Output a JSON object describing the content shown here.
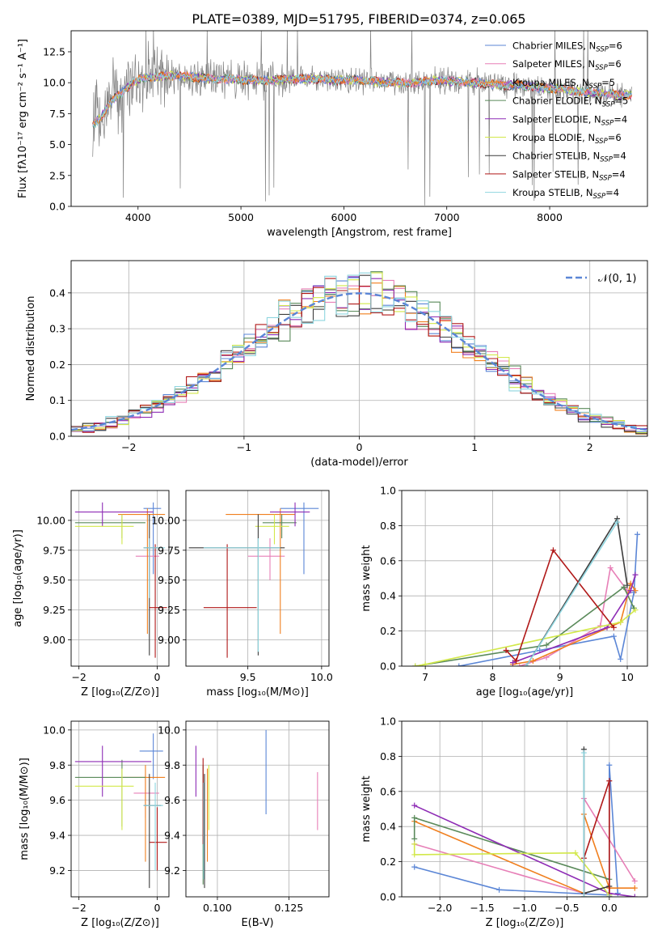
{
  "title": "PLATE=0389, MJD=51795, FIBERID=0374, z=0.065",
  "colors": {
    "Chabrier MILES": "#5b86d6",
    "Salpeter MILES": "#e77fb7",
    "Kroupa MILES": "#f07f1e",
    "Chabrier ELODIE": "#5a8a5a",
    "Salpeter ELODIE": "#8e2cb5",
    "Kroupa ELODIE": "#d2e84a",
    "Chabrier STELIB": "#3c3c3c",
    "Salpeter STELIB": "#b01818",
    "Kroupa STELIB": "#8ed5df",
    "data": "#808080",
    "normal": "#5b86d6"
  },
  "chart_data": [
    {
      "id": "spectrum",
      "type": "line",
      "title": "PLATE=0389, MJD=51795, FIBERID=0374, z=0.065",
      "xlabel": "wavelength [Angstrom, rest frame]",
      "ylabel": "Flux [fλ10⁻¹⁷ erg cm⁻² s⁻¹ A⁻¹]",
      "xlim": [
        3350,
        8950
      ],
      "ylim": [
        0,
        14.2
      ],
      "xticks": [
        "4000",
        "5000",
        "6000",
        "7000",
        "8000"
      ],
      "yticks": [
        "0.0",
        "2.5",
        "5.0",
        "7.5",
        "10.0",
        "12.5"
      ],
      "legend_position": "upper-right",
      "legend": [
        {
          "series": "Chabrier MILES",
          "label": "Chabrier MILES, N",
          "sub": "SSP",
          "value": "=6"
        },
        {
          "series": "Salpeter MILES",
          "label": "Salpeter MILES, N",
          "sub": "SSP",
          "value": "=6"
        },
        {
          "series": "Kroupa MILES",
          "label": "Kroupa MILES, N",
          "sub": "SSP",
          "value": "=5"
        },
        {
          "series": "Chabrier ELODIE",
          "label": "Chabrier ELODIE, N",
          "sub": "SSP",
          "value": "=5"
        },
        {
          "series": "Salpeter ELODIE",
          "label": "Salpeter ELODIE, N",
          "sub": "SSP",
          "value": "=4"
        },
        {
          "series": "Kroupa ELODIE",
          "label": "Kroupa ELODIE, N",
          "sub": "SSP",
          "value": "=6"
        },
        {
          "series": "Chabrier STELIB",
          "label": "Chabrier STELIB, N",
          "sub": "SSP",
          "value": "=4"
        },
        {
          "series": "Salpeter STELIB",
          "label": "Salpeter STELIB, N",
          "sub": "SSP",
          "value": "=4"
        },
        {
          "series": "Kroupa STELIB",
          "label": "Kroupa STELIB, N",
          "sub": "SSP",
          "value": "=4"
        }
      ],
      "continuum": {
        "x": [
          3560,
          3650,
          3750,
          3850,
          3950,
          4050,
          4150,
          4300,
          4500,
          4700,
          4900,
          5100,
          5300,
          5500,
          5700,
          5900,
          6100,
          6300,
          6500,
          6700,
          6900,
          7100,
          7300,
          7500,
          7700,
          7900,
          8100,
          8300,
          8500,
          8700,
          8800
        ],
        "y": [
          6.6,
          7.3,
          8.6,
          9.3,
          10.0,
          10.4,
          10.4,
          10.6,
          10.5,
          10.3,
          10.3,
          10.2,
          10.2,
          10.3,
          10.3,
          10.2,
          10.2,
          10.1,
          10.0,
          10.0,
          10.2,
          10.1,
          10.0,
          9.8,
          9.8,
          9.6,
          9.5,
          9.3,
          9.1,
          9.0,
          9.0
        ]
      }
    },
    {
      "id": "residuals",
      "type": "histogram",
      "xlabel": "(data-model)/error",
      "ylabel": "Normed distribution",
      "xlim": [
        -2.5,
        2.5
      ],
      "ylim": [
        0,
        0.49
      ],
      "xticks": [
        "−2",
        "−1",
        "0",
        "1",
        "2"
      ],
      "yticks": [
        "0.0",
        "0.1",
        "0.2",
        "0.3",
        "0.4"
      ],
      "legend": "𝒩(0, 1)",
      "legend_position": "top-right",
      "normal_curve": {
        "mean": 0,
        "sigma": 1
      }
    },
    {
      "id": "age-vs-Z",
      "type": "errorbar",
      "xlabel": "Z [log₁₀(Z/Z⊙)]",
      "ylabel": "age  [log₁₀(age/yr)]",
      "xlim": [
        -2.2,
        0.3
      ],
      "ylim": [
        8.78,
        10.25
      ],
      "xticks": [
        "−2",
        "0"
      ],
      "yticks": [
        "9.00",
        "9.25",
        "9.50",
        "9.75",
        "10.00"
      ],
      "points": [
        {
          "series": "Chabrier MILES",
          "x": -0.1,
          "xlo": -0.35,
          "xhi": 0.1,
          "y": 10.1,
          "ylo": 9.55,
          "yhi": 10.15
        },
        {
          "series": "Salpeter MILES",
          "x": -0.2,
          "xlo": -0.55,
          "xhi": 0.05,
          "y": 9.7,
          "ylo": 9.5,
          "yhi": 9.85
        },
        {
          "series": "Kroupa MILES",
          "x": -0.25,
          "xlo": -1.0,
          "xhi": 0.2,
          "y": 10.05,
          "ylo": 9.05,
          "yhi": 10.1
        },
        {
          "series": "Chabrier ELODIE",
          "x": -0.9,
          "xlo": -2.1,
          "xhi": -0.3,
          "y": 9.98,
          "ylo": 9.85,
          "yhi": 10.05
        },
        {
          "series": "Salpeter ELODIE",
          "x": -1.4,
          "xlo": -2.1,
          "xhi": -0.1,
          "y": 10.07,
          "ylo": 9.95,
          "yhi": 10.15
        },
        {
          "series": "Kroupa ELODIE",
          "x": -0.9,
          "xlo": -2.1,
          "xhi": -0.6,
          "y": 9.95,
          "ylo": 9.8,
          "yhi": 10.05
        },
        {
          "series": "Chabrier STELIB",
          "x": -0.2,
          "xlo": -0.35,
          "xhi": 0.1,
          "y": 9.77,
          "ylo": 8.87,
          "yhi": 10.05
        },
        {
          "series": "Salpeter STELIB",
          "x": -0.05,
          "xlo": -0.2,
          "xhi": 0.25,
          "y": 9.27,
          "ylo": 8.85,
          "yhi": 9.8
        },
        {
          "series": "Kroupa STELIB",
          "x": -0.2,
          "xlo": -0.35,
          "xhi": 0.2,
          "y": 9.77,
          "ylo": 9.35,
          "yhi": 9.85
        }
      ]
    },
    {
      "id": "age-vs-mass",
      "type": "errorbar",
      "xlabel": "mass [log₁₀(M/M⊙)]",
      "ylabel": "",
      "xlim": [
        9.08,
        10.05
      ],
      "ylim": [
        8.78,
        10.25
      ],
      "xticks": [
        "9.5",
        "10.0"
      ],
      "yticks": [
        "9.00",
        "9.25",
        "9.50",
        "9.75",
        "10.00"
      ],
      "points": [
        {
          "series": "Chabrier MILES",
          "x": 9.88,
          "xlo": 9.72,
          "xhi": 9.98,
          "y": 10.1,
          "ylo": 9.55,
          "yhi": 10.15
        },
        {
          "series": "Salpeter MILES",
          "x": 9.65,
          "xlo": 9.5,
          "xhi": 9.75,
          "y": 9.7,
          "ylo": 9.5,
          "yhi": 9.85
        },
        {
          "series": "Kroupa MILES",
          "x": 9.72,
          "xlo": 9.35,
          "xhi": 9.82,
          "y": 10.05,
          "ylo": 9.05,
          "yhi": 10.1
        },
        {
          "series": "Chabrier ELODIE",
          "x": 9.73,
          "xlo": 9.6,
          "xhi": 9.83,
          "y": 9.98,
          "ylo": 9.85,
          "yhi": 10.05
        },
        {
          "series": "Salpeter ELODIE",
          "x": 9.82,
          "xlo": 9.65,
          "xhi": 9.92,
          "y": 10.07,
          "ylo": 9.95,
          "yhi": 10.15
        },
        {
          "series": "Kroupa ELODIE",
          "x": 9.68,
          "xlo": 9.55,
          "xhi": 9.78,
          "y": 9.95,
          "ylo": 9.8,
          "yhi": 10.05
        },
        {
          "series": "Chabrier STELIB",
          "x": 9.57,
          "xlo": 9.1,
          "xhi": 9.75,
          "y": 9.77,
          "ylo": 8.87,
          "yhi": 10.05
        },
        {
          "series": "Salpeter STELIB",
          "x": 9.36,
          "xlo": 9.2,
          "xhi": 9.56,
          "y": 9.27,
          "ylo": 8.85,
          "yhi": 9.8
        },
        {
          "series": "Kroupa STELIB",
          "x": 9.57,
          "xlo": 9.2,
          "xhi": 9.72,
          "y": 9.77,
          "ylo": 8.9,
          "yhi": 9.85
        }
      ]
    },
    {
      "id": "weight-vs-age",
      "type": "line",
      "xlabel": "age  [log₁₀(age/yr)]",
      "ylabel": "mass weight",
      "xlim": [
        6.65,
        10.3
      ],
      "ylim": [
        0,
        1.0
      ],
      "xticks": [
        "7",
        "8",
        "9",
        "10"
      ],
      "yticks": [
        "0.0",
        "0.2",
        "0.4",
        "0.6",
        "0.8",
        "1.0"
      ],
      "series": [
        {
          "name": "Chabrier MILES",
          "x": [
            7.5,
            8.7,
            9.8,
            9.9,
            10.1,
            10.15
          ],
          "y": [
            0.0,
            0.09,
            0.17,
            0.04,
            0.42,
            0.75
          ]
        },
        {
          "name": "Salpeter MILES",
          "x": [
            8.4,
            8.8,
            9.6,
            9.75,
            10.0
          ],
          "y": [
            0.0,
            0.05,
            0.23,
            0.56,
            0.43
          ]
        },
        {
          "name": "Kroupa MILES",
          "x": [
            8.3,
            8.6,
            9.9,
            10.05,
            10.12
          ],
          "y": [
            0.01,
            0.03,
            0.25,
            0.47,
            0.43
          ]
        },
        {
          "name": "Chabrier ELODIE",
          "x": [
            6.85,
            8.8,
            9.95,
            10.1
          ],
          "y": [
            0.0,
            0.12,
            0.45,
            0.33
          ]
        },
        {
          "name": "Salpeter ELODIE",
          "x": [
            8.3,
            9.7,
            10.05,
            10.12
          ],
          "y": [
            0.02,
            0.22,
            0.43,
            0.52
          ]
        },
        {
          "name": "Kroupa ELODIE",
          "x": [
            6.85,
            7.0,
            9.9,
            10.12
          ],
          "y": [
            0.0,
            0.01,
            0.25,
            0.32
          ]
        },
        {
          "name": "Chabrier STELIB",
          "x": [
            8.5,
            9.85,
            10.0
          ],
          "y": [
            0.0,
            0.84,
            0.46
          ]
        },
        {
          "name": "Salpeter STELIB",
          "x": [
            8.2,
            8.35,
            8.9,
            9.8
          ],
          "y": [
            0.09,
            0.03,
            0.66,
            0.22
          ]
        },
        {
          "name": "Kroupa STELIB",
          "x": [
            8.5,
            9.85
          ],
          "y": [
            0.0,
            0.82
          ]
        }
      ]
    },
    {
      "id": "mass-vs-Z",
      "type": "errorbar",
      "xlabel": "Z [log₁₀(Z/Z⊙)]",
      "ylabel": "mass [log₁₀(M/M⊙)]",
      "xlim": [
        -2.2,
        0.3
      ],
      "ylim": [
        9.05,
        10.05
      ],
      "xticks": [
        "−2",
        "0"
      ],
      "yticks": [
        "9.2",
        "9.4",
        "9.6",
        "9.8",
        "10.0"
      ],
      "points": [
        {
          "series": "Chabrier MILES",
          "x": -0.1,
          "xlo": -0.45,
          "xhi": 0.15,
          "y": 9.88,
          "ylo": 9.72,
          "yhi": 9.98
        },
        {
          "series": "Salpeter MILES",
          "x": -0.3,
          "xlo": -0.6,
          "xhi": 0.05,
          "y": 9.64,
          "ylo": 9.5,
          "yhi": 9.75
        },
        {
          "series": "Kroupa MILES",
          "x": -0.3,
          "xlo": -0.9,
          "xhi": 0.2,
          "y": 9.73,
          "ylo": 9.25,
          "yhi": 9.8
        },
        {
          "series": "Chabrier ELODIE",
          "x": -0.9,
          "xlo": -2.1,
          "xhi": -0.3,
          "y": 9.73,
          "ylo": 9.45,
          "yhi": 9.83
        },
        {
          "series": "Salpeter ELODIE",
          "x": -1.4,
          "xlo": -2.1,
          "xhi": -0.15,
          "y": 9.82,
          "ylo": 9.62,
          "yhi": 9.91
        },
        {
          "series": "Kroupa ELODIE",
          "x": -0.9,
          "xlo": -2.1,
          "xhi": -0.6,
          "y": 9.68,
          "ylo": 9.43,
          "yhi": 9.78
        },
        {
          "series": "Chabrier STELIB",
          "x": -0.2,
          "xlo": -0.35,
          "xhi": 0.1,
          "y": 9.57,
          "ylo": 9.1,
          "yhi": 9.75
        },
        {
          "series": "Salpeter STELIB",
          "x": 0.0,
          "xlo": -0.2,
          "xhi": 0.25,
          "y": 9.36,
          "ylo": 9.2,
          "yhi": 9.56
        },
        {
          "series": "Kroupa STELIB",
          "x": -0.05,
          "xlo": -0.35,
          "xhi": 0.15,
          "y": 9.57,
          "ylo": 9.2,
          "yhi": 9.7
        }
      ]
    },
    {
      "id": "mass-vs-ebv",
      "type": "errorbar",
      "xlabel": "E(B-V)",
      "ylabel": "",
      "xlim": [
        0.089,
        0.139
      ],
      "ylim": [
        9.05,
        10.05
      ],
      "xticks": [
        "0.100",
        "0.125"
      ],
      "yticks": [
        "9.2",
        "9.4",
        "9.6",
        "9.8",
        "10.0"
      ],
      "points": [
        {
          "series": "Chabrier MILES",
          "x": 0.117,
          "ylo": 9.52,
          "yhi": 10.0
        },
        {
          "series": "Salpeter MILES",
          "x": 0.135,
          "ylo": 9.43,
          "yhi": 9.76
        },
        {
          "series": "Kroupa MILES",
          "x": 0.0965,
          "ylo": 9.25,
          "yhi": 9.78
        },
        {
          "series": "Chabrier ELODIE",
          "x": 0.095,
          "ylo": 9.12,
          "yhi": 9.8
        },
        {
          "series": "Salpeter ELODIE",
          "x": 0.0925,
          "ylo": 9.62,
          "yhi": 9.91
        },
        {
          "series": "Kroupa ELODIE",
          "x": 0.097,
          "ylo": 9.43,
          "yhi": 9.8
        },
        {
          "series": "Chabrier STELIB",
          "x": 0.0955,
          "ylo": 9.1,
          "yhi": 9.75
        },
        {
          "series": "Salpeter STELIB",
          "x": 0.095,
          "ylo": 9.35,
          "yhi": 9.84
        },
        {
          "series": "Kroupa STELIB",
          "x": 0.0952,
          "ylo": 9.15,
          "yhi": 9.7
        }
      ]
    },
    {
      "id": "weight-vs-Z",
      "type": "line",
      "xlabel": "Z [log₁₀(Z/Z⊙)]",
      "ylabel": "mass weight",
      "xlim": [
        -2.45,
        0.45
      ],
      "ylim": [
        0,
        1.0
      ],
      "xticks": [
        "−2.0",
        "−1.5",
        "−1.0",
        "−0.5",
        "0.0"
      ],
      "yticks": [
        "0.0",
        "0.2",
        "0.4",
        "0.6",
        "0.8",
        "1.0"
      ],
      "series": [
        {
          "name": "Chabrier MILES",
          "x": [
            -2.3,
            -1.3,
            0.0,
            0.0,
            0.1
          ],
          "y": [
            0.17,
            0.04,
            0.01,
            0.75,
            0.02
          ]
        },
        {
          "name": "Salpeter MILES",
          "x": [
            -2.3,
            -0.3,
            -0.3,
            0.3
          ],
          "y": [
            0.3,
            0.02,
            0.56,
            0.09
          ]
        },
        {
          "name": "Kroupa MILES",
          "x": [
            -2.3,
            -0.3,
            -0.3,
            0.0,
            0.3
          ],
          "y": [
            0.43,
            0.02,
            0.47,
            0.05,
            0.05
          ]
        },
        {
          "name": "Chabrier ELODIE",
          "x": [
            -2.3,
            -2.3,
            0.0,
            0.0
          ],
          "y": [
            0.33,
            0.45,
            0.1,
            0.0
          ]
        },
        {
          "name": "Salpeter ELODIE",
          "x": [
            -2.3,
            0.0,
            0.3
          ],
          "y": [
            0.52,
            0.02,
            0.0
          ]
        },
        {
          "name": "Kroupa ELODIE",
          "x": [
            -2.3,
            -2.3,
            -0.4,
            0.0
          ],
          "y": [
            0.3,
            0.24,
            0.25,
            0.01
          ]
        },
        {
          "name": "Chabrier STELIB",
          "x": [
            -0.3,
            -0.3,
            0.0,
            0.0
          ],
          "y": [
            0.84,
            0.02,
            0.06,
            0.0
          ]
        },
        {
          "name": "Salpeter STELIB",
          "x": [
            -0.3,
            -0.3,
            0.0,
            0.0
          ],
          "y": [
            0.0,
            0.22,
            0.66,
            0.0
          ]
        },
        {
          "name": "Kroupa STELIB",
          "x": [
            -0.3,
            -0.3,
            0.0
          ],
          "y": [
            0.82,
            0.0,
            0.0
          ]
        }
      ]
    }
  ]
}
